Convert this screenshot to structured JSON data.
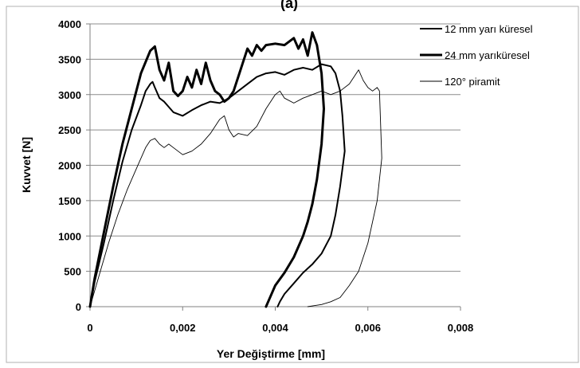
{
  "figure_label": "(a)",
  "chart_data": {
    "type": "line",
    "title": "",
    "xlabel": "Yer Değiştirme [mm]",
    "ylabel": "Kuvvet [N]",
    "xlim": [
      0,
      0.008
    ],
    "ylim": [
      0,
      4000
    ],
    "x_ticks": [
      0,
      0.002,
      0.004,
      0.006,
      0.008
    ],
    "x_tick_labels": [
      "0",
      "0,002",
      "0,004",
      "0,006",
      "0,008"
    ],
    "y_ticks": [
      0,
      500,
      1000,
      1500,
      2000,
      2500,
      3000,
      3500,
      4000
    ],
    "y_tick_labels": [
      "0",
      "500",
      "1000",
      "1500",
      "2000",
      "2500",
      "3000",
      "3500",
      "4000"
    ],
    "grid": "horizontal",
    "legend_position": "top-right",
    "series": [
      {
        "name": "12 mm yarı küresel",
        "color": "#000000",
        "style": "medium",
        "x": [
          0,
          0.0001,
          0.0003,
          0.0005,
          0.0007,
          0.0009,
          0.0011,
          0.0012,
          0.0013,
          0.00135,
          0.0014,
          0.0015,
          0.0016,
          0.0018,
          0.002,
          0.0022,
          0.0024,
          0.0026,
          0.0028,
          0.003,
          0.0032,
          0.0034,
          0.0036,
          0.0038,
          0.004,
          0.0042,
          0.0044,
          0.0046,
          0.0048,
          0.005,
          0.0052,
          0.0053,
          0.0054,
          0.00545,
          0.0055,
          0.0054,
          0.0053,
          0.0052,
          0.005,
          0.0048,
          0.0046,
          0.0044,
          0.0042,
          0.0041,
          0.00405
        ],
        "y": [
          0,
          350,
          900,
          1500,
          2050,
          2500,
          2850,
          3050,
          3150,
          3180,
          3100,
          2950,
          2900,
          2750,
          2700,
          2780,
          2850,
          2900,
          2880,
          2950,
          3050,
          3150,
          3250,
          3300,
          3320,
          3280,
          3350,
          3380,
          3350,
          3430,
          3400,
          3300,
          3050,
          2700,
          2200,
          1700,
          1300,
          1000,
          750,
          600,
          480,
          330,
          180,
          70,
          0
        ]
      },
      {
        "name": "24 mm yarıküresel",
        "color": "#000000",
        "style": "thick",
        "x": [
          0,
          0.0001,
          0.0003,
          0.0005,
          0.0007,
          0.0009,
          0.0011,
          0.0013,
          0.0014,
          0.0015,
          0.0016,
          0.0017,
          0.0018,
          0.0019,
          0.002,
          0.0021,
          0.0022,
          0.0023,
          0.0024,
          0.0025,
          0.0026,
          0.0027,
          0.0028,
          0.0029,
          0.003,
          0.0031,
          0.0032,
          0.0033,
          0.0034,
          0.0035,
          0.0036,
          0.0037,
          0.0038,
          0.004,
          0.0042,
          0.0044,
          0.0045,
          0.0046,
          0.0047,
          0.0048,
          0.0049,
          0.005,
          0.00505,
          0.005,
          0.0049,
          0.0048,
          0.0047,
          0.0046,
          0.0044,
          0.0042,
          0.004,
          0.0039,
          0.0038
        ],
        "y": [
          0,
          400,
          1050,
          1700,
          2300,
          2800,
          3300,
          3620,
          3680,
          3350,
          3200,
          3450,
          3050,
          2980,
          3050,
          3250,
          3100,
          3350,
          3150,
          3450,
          3200,
          3050,
          3000,
          2900,
          2950,
          3050,
          3250,
          3450,
          3650,
          3550,
          3700,
          3620,
          3700,
          3720,
          3700,
          3800,
          3650,
          3780,
          3550,
          3880,
          3700,
          3300,
          2800,
          2300,
          1800,
          1450,
          1200,
          1000,
          700,
          480,
          300,
          150,
          0
        ]
      },
      {
        "name": "120° piramit",
        "color": "#000000",
        "style": "thin",
        "x": [
          0,
          0.0002,
          0.0004,
          0.0006,
          0.0008,
          0.001,
          0.0012,
          0.0013,
          0.0014,
          0.0015,
          0.0016,
          0.0017,
          0.0018,
          0.002,
          0.0022,
          0.0024,
          0.0026,
          0.0028,
          0.0029,
          0.003,
          0.0031,
          0.0032,
          0.0034,
          0.0036,
          0.0038,
          0.004,
          0.0041,
          0.0042,
          0.0044,
          0.0046,
          0.0048,
          0.005,
          0.0052,
          0.0054,
          0.0056,
          0.0058,
          0.0059,
          0.006,
          0.0061,
          0.0062,
          0.00625,
          0.0063,
          0.0062,
          0.006,
          0.0058,
          0.0056,
          0.0054,
          0.0052,
          0.005,
          0.0048,
          0.0047
        ],
        "y": [
          0,
          450,
          900,
          1300,
          1650,
          1950,
          2250,
          2350,
          2380,
          2300,
          2250,
          2300,
          2250,
          2150,
          2200,
          2300,
          2450,
          2650,
          2700,
          2500,
          2400,
          2450,
          2420,
          2550,
          2800,
          3000,
          3050,
          2950,
          2880,
          2950,
          3000,
          3050,
          3000,
          3050,
          3150,
          3350,
          3200,
          3100,
          3050,
          3100,
          3050,
          2100,
          1500,
          900,
          500,
          300,
          130,
          70,
          30,
          10,
          0
        ]
      }
    ]
  }
}
